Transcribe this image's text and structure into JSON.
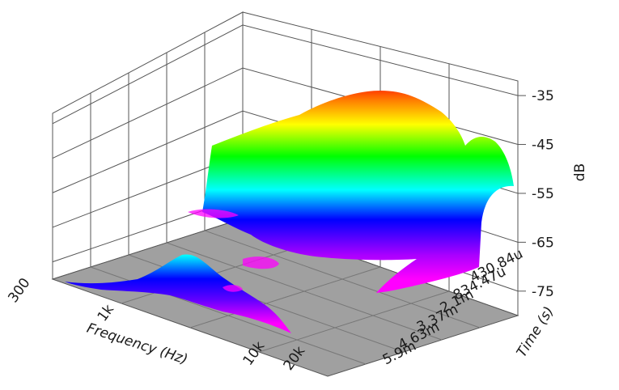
{
  "chart_data": {
    "type": "surface3d",
    "title": "",
    "zlabel": "dB",
    "xlabel": "Frequency (Hz)",
    "ylabel": "Time (s)",
    "x_ticks": [
      "300",
      "1k",
      "10k",
      "20k"
    ],
    "y_ticks": [
      "430.84u",
      "834.47u",
      "2.1m",
      "3.37m",
      "4.63m",
      "5.9m"
    ],
    "z_ticks": [
      "-35",
      "-45",
      "-55",
      "-65",
      "-75"
    ],
    "zlim": [
      -80,
      -32
    ],
    "floor_color": "#a0a0a0",
    "colormap": "rainbow: magenta (low) to blue, cyan, green, yellow, red (high)",
    "surface_peaks": [
      {
        "time": "430.84u",
        "freq_range": [
          "1k",
          "20k"
        ],
        "peak_db": -37
      },
      {
        "time": "2.1m",
        "freq_range": [
          "300",
          "10k"
        ],
        "peak_db": -65
      }
    ]
  }
}
